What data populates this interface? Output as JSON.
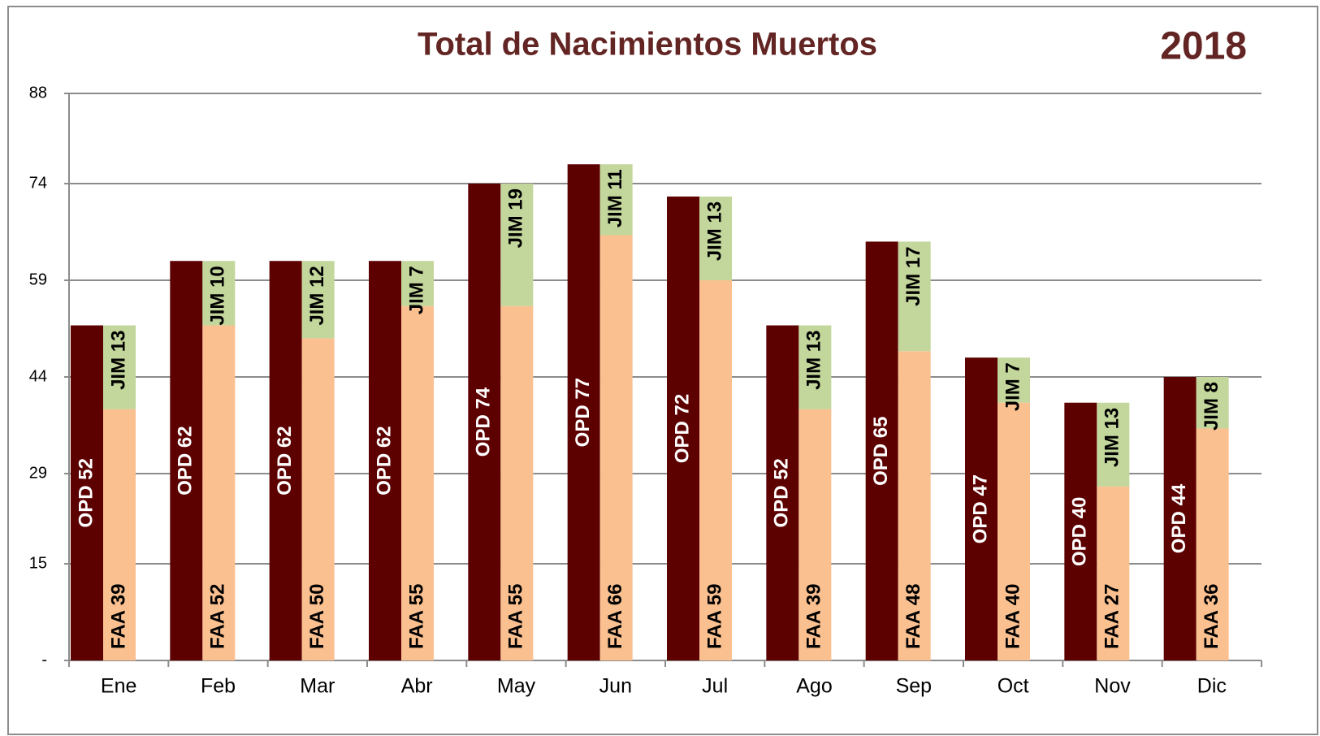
{
  "chart_data": {
    "type": "bar",
    "title": "Total de Nacimientos Muertos",
    "subtitle": "2018",
    "categories": [
      "Ene",
      "Feb",
      "Mar",
      "Abr",
      "May",
      "Jun",
      "Jul",
      "Ago",
      "Sep",
      "Oct",
      "Nov",
      "Dic"
    ],
    "series": [
      {
        "name": "OPD",
        "color": "#5c0000",
        "stack": 0,
        "values": [
          52,
          62,
          62,
          62,
          74,
          77,
          72,
          52,
          65,
          47,
          40,
          44
        ],
        "value_labels": [
          "OPD 52",
          "OPD 62",
          "OPD 62",
          "OPD 62",
          "OPD 74",
          "OPD 77",
          "OPD 72",
          "OPD 52",
          "OPD 65",
          "OPD 47",
          "OPD 40",
          "OPD 44"
        ]
      },
      {
        "name": "FAA",
        "color": "#fac090",
        "stack": 1,
        "values": [
          39,
          52,
          50,
          55,
          55,
          66,
          59,
          39,
          48,
          40,
          27,
          36
        ],
        "value_labels": [
          "FAA 39",
          "FAA 52",
          "FAA 50",
          "FAA 55",
          "FAA 55",
          "FAA 66",
          "FAA 59",
          "FAA 39",
          "FAA 48",
          "FAA 40",
          "FAA 27",
          "FAA 36"
        ]
      },
      {
        "name": "JIM",
        "color": "#c3d69b",
        "stack": 1,
        "values": [
          13,
          10,
          12,
          7,
          19,
          11,
          13,
          13,
          17,
          7,
          13,
          8
        ],
        "value_labels": [
          "JIM 13",
          "JIM 10",
          "JIM 12",
          "JIM 7",
          "JIM 19",
          "JIM 11",
          "JIM 13",
          "JIM 13",
          "JIM 17",
          "JIM 7",
          "JIM 13",
          "JIM 8"
        ]
      }
    ],
    "ylim": [
      0,
      88
    ],
    "yticks": [
      {
        "value": 0,
        "label": "-"
      },
      15,
      29,
      44,
      59,
      74,
      88
    ],
    "grid": true
  }
}
